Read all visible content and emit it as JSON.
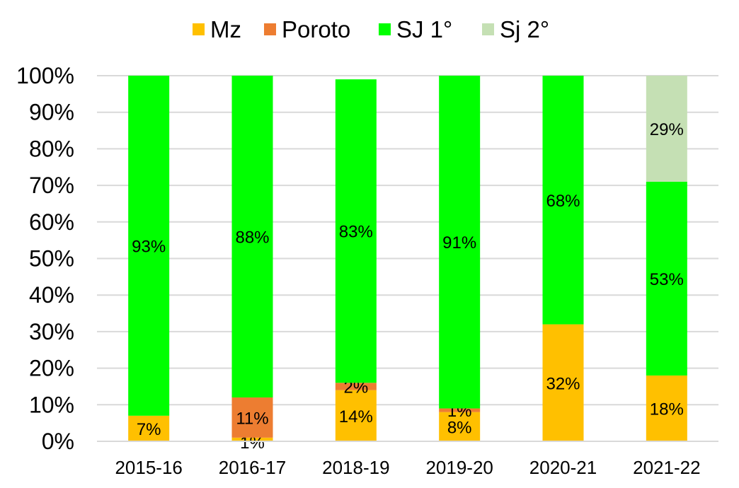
{
  "chart_data": {
    "type": "bar",
    "stacked": true,
    "categories": [
      "2015-16",
      "2016-17",
      "2018-19",
      "2019-20",
      "2020-21",
      "2021-22"
    ],
    "series": [
      {
        "name": "Mz",
        "color": "#FFC000",
        "values": [
          7,
          1,
          14,
          8,
          32,
          18
        ],
        "labels": [
          "7%",
          "1%",
          "14%",
          "8%",
          "32%",
          "18%"
        ]
      },
      {
        "name": "Poroto",
        "color": "#ED7D31",
        "values": [
          0,
          11,
          2,
          1,
          0,
          0
        ],
        "labels": [
          "",
          "11%",
          "2%",
          "1%",
          "",
          ""
        ]
      },
      {
        "name": "SJ 1°",
        "color": "#00FF00",
        "values": [
          93,
          88,
          83,
          91,
          68,
          53
        ],
        "labels": [
          "93%",
          "88%",
          "83%",
          "91%",
          "68%",
          "53%"
        ]
      },
      {
        "name": "Sj 2°",
        "color": "#C5E0B4",
        "values": [
          0,
          0,
          0,
          0,
          0,
          29
        ],
        "labels": [
          "",
          "",
          "",
          "",
          "",
          "29%"
        ]
      }
    ],
    "yticks": [
      "0%",
      "10%",
      "20%",
      "30%",
      "40%",
      "50%",
      "60%",
      "70%",
      "80%",
      "90%",
      "100%"
    ],
    "ylim": [
      0,
      100
    ],
    "grid": true,
    "legend_position": "top",
    "gridline_color": "#D9D9D9"
  }
}
